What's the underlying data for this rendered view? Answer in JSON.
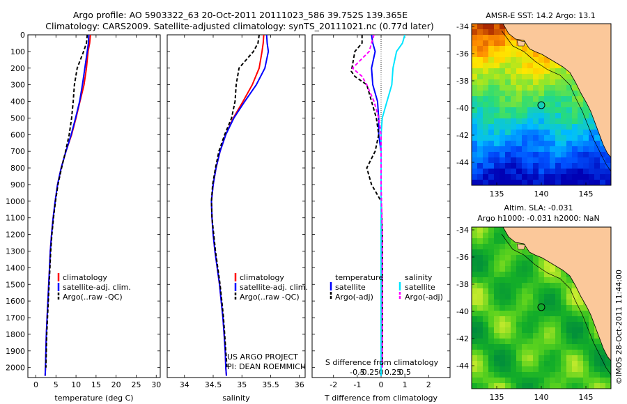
{
  "title": {
    "line1": "Argo profile: AO 5903322_63 20-Oct-2011 20111023_586 39.752S 139.365E",
    "line2": "Climatology: CARS2009. Satellite-adjusted climatology: synTS_20111021.nc (0.77d later)"
  },
  "colors": {
    "climatology": "#ff0000",
    "satellite": "#0000ff",
    "argo": "#000000",
    "salinity_sat": "#00e5ff",
    "salinity_argo": "#ff00ff",
    "land": "#fbc89a"
  },
  "chart_data": [
    {
      "type": "line",
      "xlabel": "temperature (deg C)",
      "ylabel": "",
      "xlim": [
        -2,
        31
      ],
      "ylim": [
        2060,
        0
      ],
      "xticks": [
        "0",
        "5",
        "10",
        "15",
        "20",
        "25",
        "30"
      ],
      "yticks": [
        "0",
        "100",
        "200",
        "300",
        "400",
        "500",
        "600",
        "700",
        "800",
        "900",
        "1000",
        "1100",
        "1200",
        "1300",
        "1400",
        "1500",
        "1600",
        "1700",
        "1800",
        "1900",
        "2000"
      ],
      "legend": [
        "climatology",
        "satellite-adj. clim.",
        "Argo(..raw -QC)"
      ],
      "legend_position": "middle",
      "series": [
        {
          "name": "climatology",
          "color": "#ff0000",
          "dash": "",
          "points": [
            [
              13.6,
              0
            ],
            [
              13.4,
              50
            ],
            [
              13.0,
              100
            ],
            [
              12.6,
              200
            ],
            [
              12.0,
              300
            ],
            [
              11.0,
              400
            ],
            [
              10.0,
              500
            ],
            [
              8.9,
              600
            ],
            [
              7.5,
              700
            ],
            [
              6.3,
              800
            ],
            [
              5.4,
              900
            ],
            [
              4.8,
              1000
            ],
            [
              4.3,
              1100
            ],
            [
              3.9,
              1200
            ],
            [
              3.6,
              1300
            ],
            [
              3.4,
              1400
            ],
            [
              3.2,
              1500
            ],
            [
              3.0,
              1600
            ],
            [
              2.8,
              1700
            ],
            [
              2.6,
              1800
            ],
            [
              2.5,
              1900
            ],
            [
              2.4,
              2000
            ],
            [
              2.3,
              2050
            ]
          ]
        },
        {
          "name": "satellite-adj. clim.",
          "color": "#0000ff",
          "dash": "",
          "points": [
            [
              13.2,
              0
            ],
            [
              13.1,
              50
            ],
            [
              12.8,
              100
            ],
            [
              12.2,
              200
            ],
            [
              11.6,
              300
            ],
            [
              10.9,
              400
            ],
            [
              9.9,
              500
            ],
            [
              8.8,
              600
            ],
            [
              7.5,
              700
            ],
            [
              6.3,
              800
            ],
            [
              5.4,
              900
            ],
            [
              4.8,
              1000
            ],
            [
              4.3,
              1100
            ],
            [
              3.9,
              1200
            ],
            [
              3.6,
              1300
            ],
            [
              3.4,
              1400
            ],
            [
              3.2,
              1500
            ],
            [
              3.0,
              1600
            ],
            [
              2.8,
              1700
            ],
            [
              2.6,
              1800
            ],
            [
              2.5,
              1900
            ],
            [
              2.4,
              2000
            ],
            [
              2.3,
              2050
            ]
          ]
        },
        {
          "name": "Argo(..raw -QC)",
          "color": "#000000",
          "dash": "5,3",
          "points": [
            [
              12.8,
              0
            ],
            [
              12.6,
              50
            ],
            [
              11.9,
              100
            ],
            [
              10.3,
              200
            ],
            [
              9.6,
              300
            ],
            [
              9.3,
              400
            ],
            [
              8.9,
              500
            ],
            [
              8.3,
              600
            ],
            [
              7.4,
              700
            ],
            [
              6.4,
              800
            ],
            [
              5.5,
              900
            ],
            [
              4.9,
              1000
            ],
            [
              4.4,
              1100
            ],
            [
              4.0,
              1200
            ],
            [
              3.7,
              1300
            ],
            [
              3.5,
              1400
            ],
            [
              3.3,
              1500
            ],
            [
              3.1,
              1600
            ],
            [
              2.9,
              1700
            ],
            [
              2.7,
              1800
            ],
            [
              2.6,
              1900
            ],
            [
              2.5,
              2000
            ]
          ]
        }
      ]
    },
    {
      "type": "line",
      "xlabel": "salinity",
      "ylabel": "",
      "xlim": [
        33.7,
        36.1
      ],
      "ylim": [
        2060,
        0
      ],
      "xticks": [
        "34",
        "34.5",
        "35",
        "35.5",
        "36"
      ],
      "legend": [
        "climatology",
        "satellite-adj. clim.",
        "Argo(..raw -QC)"
      ],
      "legend_position": "middle",
      "annotations": [
        "US ARGO PROJECT",
        "PI: DEAN ROEMMICH"
      ],
      "series": [
        {
          "name": "climatology",
          "color": "#ff0000",
          "dash": "",
          "points": [
            [
              35.38,
              0
            ],
            [
              35.37,
              50
            ],
            [
              35.35,
              100
            ],
            [
              35.3,
              200
            ],
            [
              35.18,
              300
            ],
            [
              35.02,
              400
            ],
            [
              34.85,
              500
            ],
            [
              34.72,
              600
            ],
            [
              34.62,
              700
            ],
            [
              34.55,
              800
            ],
            [
              34.5,
              900
            ],
            [
              34.47,
              1000
            ],
            [
              34.48,
              1100
            ],
            [
              34.5,
              1200
            ],
            [
              34.53,
              1300
            ],
            [
              34.57,
              1400
            ],
            [
              34.61,
              1500
            ],
            [
              34.64,
              1600
            ],
            [
              34.67,
              1700
            ],
            [
              34.69,
              1800
            ],
            [
              34.71,
              1900
            ],
            [
              34.72,
              2000
            ],
            [
              34.73,
              2050
            ]
          ]
        },
        {
          "name": "satellite-adj. clim.",
          "color": "#0000ff",
          "dash": "",
          "points": [
            [
              35.43,
              0
            ],
            [
              35.44,
              50
            ],
            [
              35.46,
              100
            ],
            [
              35.4,
              200
            ],
            [
              35.25,
              300
            ],
            [
              35.05,
              400
            ],
            [
              34.86,
              500
            ],
            [
              34.72,
              600
            ],
            [
              34.62,
              700
            ],
            [
              34.55,
              800
            ],
            [
              34.5,
              900
            ],
            [
              34.47,
              1000
            ],
            [
              34.48,
              1100
            ],
            [
              34.5,
              1200
            ],
            [
              34.53,
              1300
            ],
            [
              34.57,
              1400
            ],
            [
              34.61,
              1500
            ],
            [
              34.64,
              1600
            ],
            [
              34.67,
              1700
            ],
            [
              34.69,
              1800
            ],
            [
              34.71,
              1900
            ],
            [
              34.72,
              2000
            ],
            [
              34.73,
              2050
            ]
          ]
        },
        {
          "name": "Argo(..raw -QC)",
          "color": "#000000",
          "dash": "5,3",
          "points": [
            [
              35.3,
              0
            ],
            [
              35.28,
              50
            ],
            [
              35.2,
              100
            ],
            [
              34.95,
              200
            ],
            [
              34.9,
              300
            ],
            [
              34.88,
              400
            ],
            [
              34.82,
              500
            ],
            [
              34.7,
              600
            ],
            [
              34.6,
              700
            ],
            [
              34.54,
              800
            ],
            [
              34.49,
              900
            ],
            [
              34.47,
              1000
            ],
            [
              34.48,
              1100
            ],
            [
              34.51,
              1200
            ],
            [
              34.54,
              1300
            ],
            [
              34.58,
              1400
            ],
            [
              34.62,
              1500
            ],
            [
              34.65,
              1600
            ],
            [
              34.68,
              1700
            ],
            [
              34.7,
              1800
            ],
            [
              34.72,
              1900
            ],
            [
              34.74,
              2000
            ]
          ]
        }
      ]
    },
    {
      "type": "line",
      "xlabel": "T difference from climatology",
      "ylabel": "",
      "xlim": [
        -2.9,
        2.9
      ],
      "ylim": [
        2060,
        0
      ],
      "xticks": [
        "-2",
        "-1",
        "0",
        "1",
        "2"
      ],
      "top_axis_label": "S difference from climatology",
      "top_axis_ticks": [
        "-0.5",
        "-0.25",
        "0",
        "0.25",
        "0.5"
      ],
      "legend_temperature": {
        "heading": "temperature",
        "items": [
          "satellite",
          "Argo(-adj)"
        ]
      },
      "legend_salinity": {
        "heading": "salinity",
        "items": [
          "satellite",
          "Argo(-adj)"
        ]
      },
      "series": [
        {
          "name": "temperature satellite",
          "color": "#0000ff",
          "dash": "",
          "points": [
            [
              -0.4,
              0
            ],
            [
              -0.35,
              50
            ],
            [
              -0.25,
              100
            ],
            [
              -0.4,
              200
            ],
            [
              -0.35,
              300
            ],
            [
              -0.15,
              400
            ],
            [
              -0.1,
              500
            ],
            [
              -0.1,
              600
            ],
            [
              0.0,
              700
            ],
            [
              0.0,
              800
            ],
            [
              0.0,
              900
            ],
            [
              0.0,
              1000
            ],
            [
              0.0,
              1200
            ],
            [
              0.0,
              1500
            ],
            [
              0.0,
              1800
            ],
            [
              0.0,
              2050
            ]
          ]
        },
        {
          "name": "temperature Argo(-adj)",
          "color": "#000000",
          "dash": "5,3",
          "points": [
            [
              -0.8,
              0
            ],
            [
              -0.8,
              50
            ],
            [
              -1.1,
              100
            ],
            [
              -1.25,
              220
            ],
            [
              -1.1,
              250
            ],
            [
              -0.6,
              300
            ],
            [
              -0.4,
              400
            ],
            [
              -0.2,
              500
            ],
            [
              -0.1,
              600
            ],
            [
              -0.25,
              700
            ],
            [
              -0.6,
              800
            ],
            [
              -0.4,
              900
            ],
            [
              0.0,
              1000
            ],
            [
              0.05,
              1200
            ],
            [
              0.05,
              1500
            ],
            [
              0.05,
              2000
            ]
          ]
        },
        {
          "name": "salinity satellite",
          "color": "#00e5ff",
          "dash": "",
          "points": [
            [
              1.0,
              0
            ],
            [
              0.9,
              50
            ],
            [
              0.65,
              100
            ],
            [
              0.5,
              200
            ],
            [
              0.45,
              300
            ],
            [
              0.25,
              400
            ],
            [
              0.05,
              500
            ],
            [
              0.0,
              600
            ],
            [
              0.0,
              800
            ],
            [
              0.0,
              1200
            ],
            [
              0.0,
              1600
            ],
            [
              0.0,
              2050
            ]
          ]
        },
        {
          "name": "salinity Argo(-adj)",
          "color": "#ff00ff",
          "dash": "5,3",
          "points": [
            [
              -0.3,
              0
            ],
            [
              -0.4,
              50
            ],
            [
              -0.5,
              100
            ],
            [
              -1.2,
              200
            ],
            [
              -0.8,
              250
            ],
            [
              -0.6,
              300
            ],
            [
              -0.3,
              400
            ],
            [
              -0.1,
              500
            ],
            [
              0.0,
              600
            ],
            [
              0.0,
              900
            ],
            [
              0.05,
              1200
            ],
            [
              0.05,
              1600
            ],
            [
              0.05,
              2000
            ]
          ]
        }
      ]
    }
  ],
  "maps": {
    "sst": {
      "title": "AMSR-E SST: 14.2 Argo: 13.1",
      "xticks": [
        "135",
        "140",
        "145"
      ],
      "yticks": [
        "-34",
        "-36",
        "-38",
        "-40",
        "-42",
        "-44"
      ]
    },
    "sla": {
      "title_line1": "Altim. SLA: -0.031",
      "title_line2": "Argo h1000: -0.031 h2000: NaN",
      "xticks": [
        "135",
        "140",
        "145"
      ],
      "yticks": [
        "-34",
        "-36",
        "-38",
        "-40",
        "-42",
        "-44"
      ]
    },
    "credit": "©IMOS 28-Oct-2011 11:44:00"
  }
}
